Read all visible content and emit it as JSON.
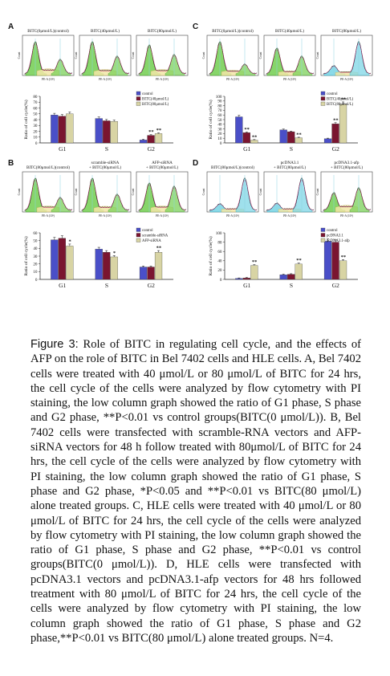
{
  "figure": {
    "panels": [
      {
        "id": "A",
        "letter": "A",
        "histogram_titles": [
          "BITC(0μmol/L)(control)",
          "BITC(40μmol/L)",
          "BITC(80μmol/L)"
        ],
        "histogram_overlays": [
          "none",
          "none",
          "none"
        ],
        "histogram_fit": [
          "green",
          "green",
          "green"
        ],
        "legend": [
          "control",
          "BITC(40μmol/L)",
          "BITC(80μmol/L)"
        ],
        "colors": [
          "#4a4fc8",
          "#7a1530",
          "#d8d4a4"
        ],
        "ylabel": "Ratio of cell cycle(%)",
        "categories": [
          "G1",
          "S",
          "G2"
        ],
        "ylim": [
          0,
          80
        ],
        "yticks": [
          0,
          10,
          20,
          30,
          40,
          50,
          60,
          70,
          80
        ],
        "series": [
          {
            "name": "control",
            "values": [
              48,
              42,
              5
            ]
          },
          {
            "name": "BITC(40μmol/L)",
            "values": [
              46,
              38,
              13
            ]
          },
          {
            "name": "BITC(80μmol/L)",
            "values": [
              50,
              37,
              16
            ]
          }
        ],
        "annotations": [
          {
            "category": 2,
            "series": 1,
            "text": "**"
          },
          {
            "category": 2,
            "series": 2,
            "text": "**"
          }
        ]
      },
      {
        "id": "B",
        "letter": "B",
        "histogram_titles": [
          "BITC(80μmol/L)(control)",
          "scramble-siRNA\n+ BITC(80μmol/L)",
          "AFP-siRNA\n+ BITC(80μmol/L)"
        ],
        "histogram_overlays": [
          "none",
          "none",
          "none"
        ],
        "histogram_fit": [
          "green",
          "green",
          "green"
        ],
        "legend": [
          "control",
          "scramble-siRNA",
          "AFP-siRNA"
        ],
        "colors": [
          "#4a4fc8",
          "#7a1530",
          "#d8d4a4"
        ],
        "ylabel": "Ratio of cell cycle(%)",
        "categories": [
          "G1",
          "S",
          "G2"
        ],
        "ylim": [
          0,
          60
        ],
        "yticks": [
          0,
          10,
          20,
          30,
          40,
          50,
          60
        ],
        "series": [
          {
            "name": "control",
            "values": [
              51,
              39,
              16
            ]
          },
          {
            "name": "scramble-siRNA",
            "values": [
              53,
              35,
              16
            ]
          },
          {
            "name": "AFP-siRNA",
            "values": [
              43,
              29,
              35
            ]
          }
        ],
        "annotations": [
          {
            "category": 0,
            "series": 2,
            "text": "*"
          },
          {
            "category": 1,
            "series": 2,
            "text": "*"
          },
          {
            "category": 2,
            "series": 2,
            "text": "**"
          }
        ]
      },
      {
        "id": "C",
        "letter": "C",
        "histogram_titles": [
          "BITC(0μmol/L)(control)",
          "BITC(40μmol/L)",
          "BITC(80μmol/L)"
        ],
        "histogram_overlays": [
          "none",
          "none",
          "cyan"
        ],
        "histogram_fit": [
          "green",
          "green",
          "cyan"
        ],
        "legend": [
          "control",
          "BITC(40μmol/L)",
          "BITC(80μmol/L)"
        ],
        "colors": [
          "#4a4fc8",
          "#7a1530",
          "#d8d4a4"
        ],
        "ylabel": "Ratio of cell cycle(%)",
        "categories": [
          "G1",
          "S",
          "G2"
        ],
        "ylim": [
          0,
          100
        ],
        "yticks": [
          0,
          10,
          20,
          30,
          40,
          50,
          60,
          70,
          80,
          90,
          100
        ],
        "series": [
          {
            "name": "control",
            "values": [
              56,
              28,
              9
            ]
          },
          {
            "name": "BITC(40μmol/L)",
            "values": [
              22,
              24,
              41
            ]
          },
          {
            "name": "BITC(80μmol/L)",
            "values": [
              6,
              11,
              83
            ]
          }
        ],
        "annotations": [
          {
            "category": 0,
            "series": 1,
            "text": "**"
          },
          {
            "category": 0,
            "series": 2,
            "text": "**"
          },
          {
            "category": 1,
            "series": 2,
            "text": "**"
          },
          {
            "category": 2,
            "series": 1,
            "text": "**"
          },
          {
            "category": 2,
            "series": 2,
            "text": "**"
          }
        ]
      },
      {
        "id": "D",
        "letter": "D",
        "histogram_titles": [
          "BITC(80μmol/L)(control)",
          "pcDNA3.1\n+ BITC(80μmol/L)",
          "pcDNA3.1-afp\n+ BITC(80μmol/L)"
        ],
        "histogram_overlays": [
          "cyan",
          "cyan",
          "none"
        ],
        "histogram_fit": [
          "cyan",
          "cyan",
          "green"
        ],
        "legend": [
          "control",
          "pcDNA3.1",
          "pcDNA3.1-afp"
        ],
        "colors": [
          "#4a4fc8",
          "#7a1530",
          "#d8d4a4"
        ],
        "ylabel": "Ratio of cell cycle(%)",
        "categories": [
          "G1",
          "S",
          "G2"
        ],
        "ylim": [
          0,
          100
        ],
        "yticks": [
          0,
          20,
          40,
          60,
          80,
          100
        ],
        "series": [
          {
            "name": "control",
            "values": [
              2,
              10,
              82
            ]
          },
          {
            "name": "pcDNA3.1",
            "values": [
              3,
              11,
              80
            ]
          },
          {
            "name": "pcDNA3.1-afp",
            "values": [
              30,
              33,
              40
            ]
          }
        ],
        "annotations": [
          {
            "category": 0,
            "series": 2,
            "text": "**"
          },
          {
            "category": 1,
            "series": 2,
            "text": "**"
          },
          {
            "category": 2,
            "series": 2,
            "text": "**"
          }
        ]
      }
    ],
    "hist_axis_x": "PE-A (10³)",
    "hist_axis_y": "Count"
  },
  "chart_data": [
    {
      "panel": "A",
      "type": "bar",
      "categories": [
        "G1",
        "S",
        "G2"
      ],
      "ylabel": "Ratio of cell cycle(%)",
      "ylim": [
        0,
        80
      ],
      "series": [
        {
          "name": "control",
          "values": [
            48,
            42,
            5
          ]
        },
        {
          "name": "BITC(40μmol/L)",
          "values": [
            46,
            38,
            13
          ]
        },
        {
          "name": "BITC(80μmol/L)",
          "values": [
            50,
            37,
            16
          ]
        }
      ]
    },
    {
      "panel": "B",
      "type": "bar",
      "categories": [
        "G1",
        "S",
        "G2"
      ],
      "ylabel": "Ratio of cell cycle(%)",
      "ylim": [
        0,
        60
      ],
      "series": [
        {
          "name": "control",
          "values": [
            51,
            39,
            16
          ]
        },
        {
          "name": "scramble-siRNA",
          "values": [
            53,
            35,
            16
          ]
        },
        {
          "name": "AFP-siRNA",
          "values": [
            43,
            29,
            35
          ]
        }
      ]
    },
    {
      "panel": "C",
      "type": "bar",
      "categories": [
        "G1",
        "S",
        "G2"
      ],
      "ylabel": "Ratio of cell cycle(%)",
      "ylim": [
        0,
        100
      ],
      "series": [
        {
          "name": "control",
          "values": [
            56,
            28,
            9
          ]
        },
        {
          "name": "BITC(40μmol/L)",
          "values": [
            22,
            24,
            41
          ]
        },
        {
          "name": "BITC(80μmol/L)",
          "values": [
            6,
            11,
            83
          ]
        }
      ]
    },
    {
      "panel": "D",
      "type": "bar",
      "categories": [
        "G1",
        "S",
        "G2"
      ],
      "ylabel": "Ratio of cell cycle(%)",
      "ylim": [
        0,
        100
      ],
      "series": [
        {
          "name": "control",
          "values": [
            2,
            10,
            82
          ]
        },
        {
          "name": "pcDNA3.1",
          "values": [
            3,
            11,
            80
          ]
        },
        {
          "name": "pcDNA3.1-afp",
          "values": [
            30,
            33,
            40
          ]
        }
      ]
    }
  ],
  "caption": {
    "label": "Figure 3:",
    "text": "Role of BITC in regulating cell cycle, and the effects of AFP on the role of BITC in Bel 7402 cells and HLE cells. A, Bel 7402 cells were treated with 40 μmol/L or 80 μmol/L of BITC for 24 hrs, the cell cycle of the cells were analyzed by flow cytometry with PI staining, the low column graph showed the ratio of G1 phase, S phase and G2 phase, **P<0.01 vs control groups(BITC(0 μmol/L)). B, Bel 7402 cells were transfected with scramble-RNA vectors and AFP-siRNA vectors for 48 h follow treated with 80μmol/L of BITC for 24 hrs, the cell cycle of the cells were analyzed by flow cytometry with PI staining, the low column graph showed the ratio of G1 phase, S phase and G2 phase, *P<0.05 and **P<0.01 vs BITC(80 μmol/L) alone treated groups. C, HLE cells were treated with 40 μmol/L or 80 μmol/L of BITC for 24 hrs, the cell cycle of the cells were analyzed by flow cytometry with PI staining, the low column graph showed the ratio of G1 phase, S phase and G2 phase, **P<0.01 vs control groups(BITC(0 μmol/L)). D, HLE cells were transfected with pcDNA3.1 vectors and pcDNA3.1-afp vectors for 48 hrs followed treatment with 80 μmol/L of BITC for 24 hrs, the cell cycle of the cells were analyzed by flow cytometry with PI staining, the low column graph showed the ratio of G1 phase, S phase and G2 phase,**P<0.01 vs BITC(80 μmol/L) alone treated groups. N=4."
  }
}
